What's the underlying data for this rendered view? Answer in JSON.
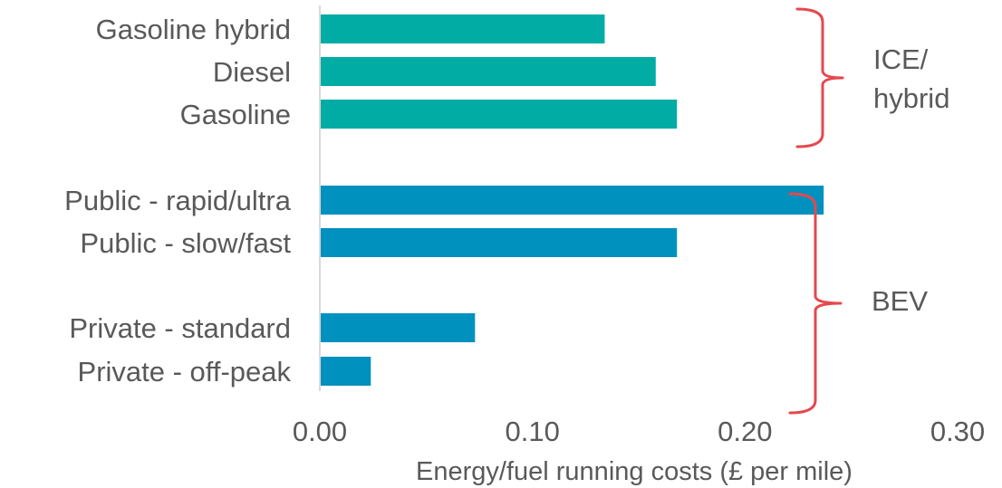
{
  "chart_data": {
    "type": "bar",
    "orientation": "horizontal",
    "categories": [
      "Gasoline hybrid",
      "Diesel",
      "Gasoline",
      "Public - rapid/ultra",
      "Public - slow/fast",
      "Private - standard",
      "Private - off-peak"
    ],
    "values": [
      0.134,
      0.158,
      0.168,
      0.237,
      0.168,
      0.073,
      0.024
    ],
    "bar_groups": [
      "ICE/hybrid",
      "ICE/hybrid",
      "ICE/hybrid",
      "BEV",
      "BEV",
      "BEV",
      "BEV"
    ],
    "xlabel": "Energy/fuel running costs (£ per mile)",
    "xlim": [
      0,
      0.3
    ],
    "xticks": [
      "0.00",
      "0.10",
      "0.20",
      "0.30"
    ],
    "grid": false,
    "legend": "none",
    "groups": [
      {
        "label_lines": [
          "ICE/",
          "hybrid"
        ],
        "color": "#00ACA4"
      },
      {
        "label_lines": [
          "BEV"
        ],
        "color": "#0091BE"
      }
    ],
    "brace_color": "#E5484D",
    "axis_line_color": "#D9D9D9"
  }
}
